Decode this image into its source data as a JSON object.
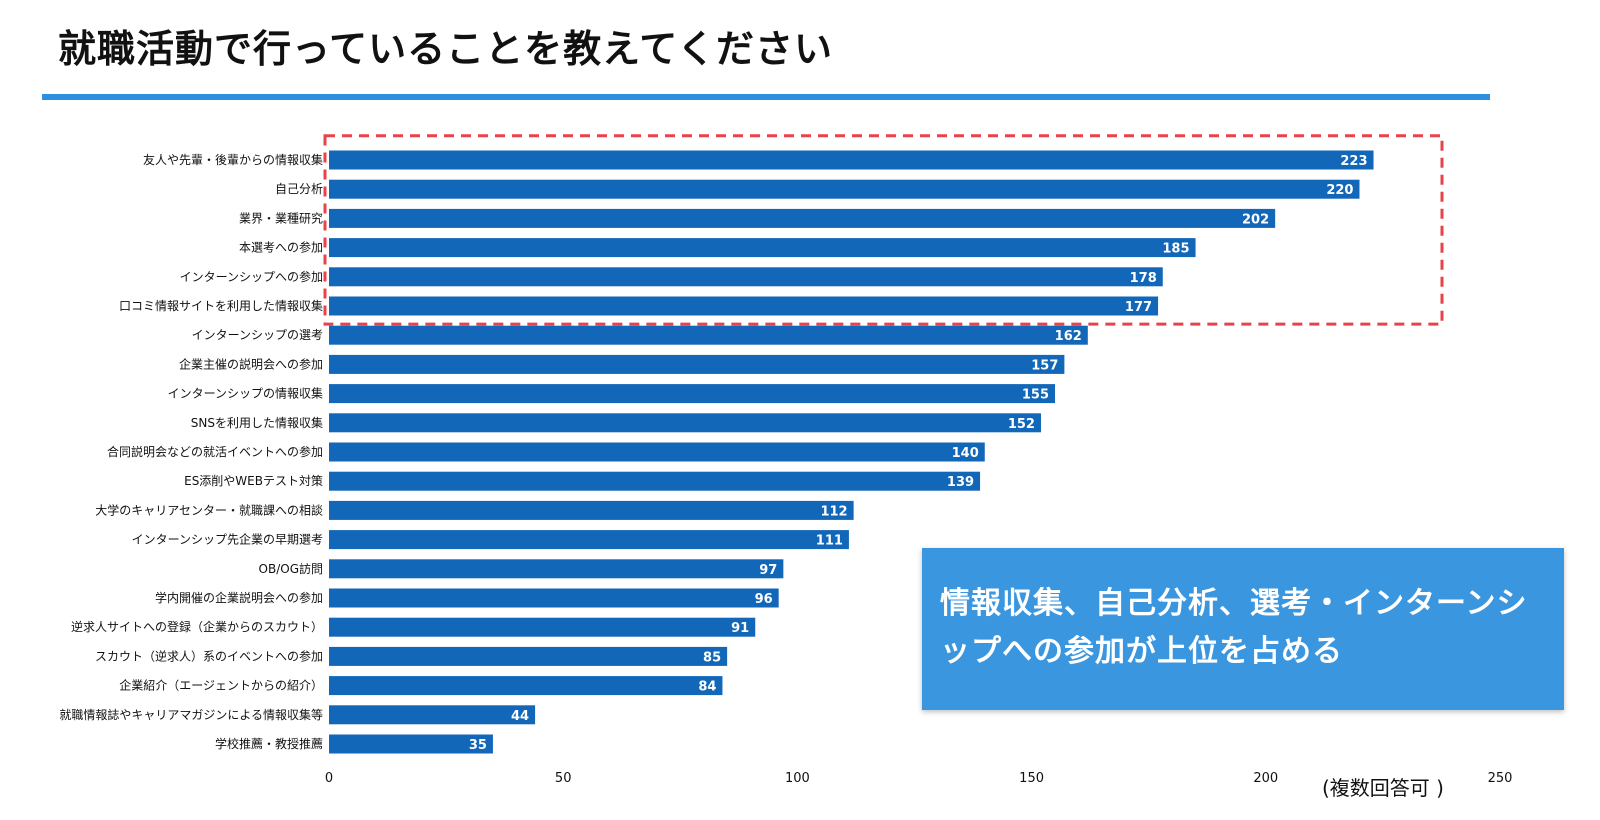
{
  "page": {
    "title": "就職活動で行っていることを教えてください",
    "callout": "情報収集、自己分析、選考・インターンシップへの参加が上位を占める",
    "note": "(複数回答可 )"
  },
  "colors": {
    "bar": "#1267b8",
    "accent_rule": "#2e8fe0",
    "highlight_dash": "#e8434b",
    "callout_bg": "#3b96e0"
  },
  "chart_data": {
    "type": "bar",
    "orientation": "horizontal",
    "categories": [
      "友人や先輩・後輩からの情報収集",
      "自己分析",
      "業界・業種研究",
      "本選考への参加",
      "インターンシップへの参加",
      "口コミ情報サイトを利用した情報収集",
      "インターンシップの選考",
      "企業主催の説明会への参加",
      "インターンシップの情報収集",
      "SNSを利用した情報収集",
      "合同説明会などの就活イベントへの参加",
      "ES添削やWEBテスト対策",
      "大学のキャリアセンター・就職課への相談",
      "インターンシップ先企業の早期選考",
      "OB/OG訪問",
      "学内開催の企業説明会への参加",
      "逆求人サイトへの登録（企業からのスカウト）",
      "スカウト（逆求人）系のイベントへの参加",
      "企業紹介（エージェントからの紹介）",
      "就職情報誌やキャリアマガジンによる情報収集等",
      "学校推薦・教授推薦"
    ],
    "values": [
      223,
      220,
      202,
      185,
      178,
      177,
      162,
      157,
      155,
      152,
      140,
      139,
      112,
      111,
      97,
      96,
      91,
      85,
      84,
      44,
      35
    ],
    "xlim": [
      0,
      250
    ],
    "xticks": [
      0,
      50,
      100,
      150,
      200,
      250
    ],
    "highlighted_top": 6,
    "grid": false,
    "data_labels": "inside-end"
  }
}
